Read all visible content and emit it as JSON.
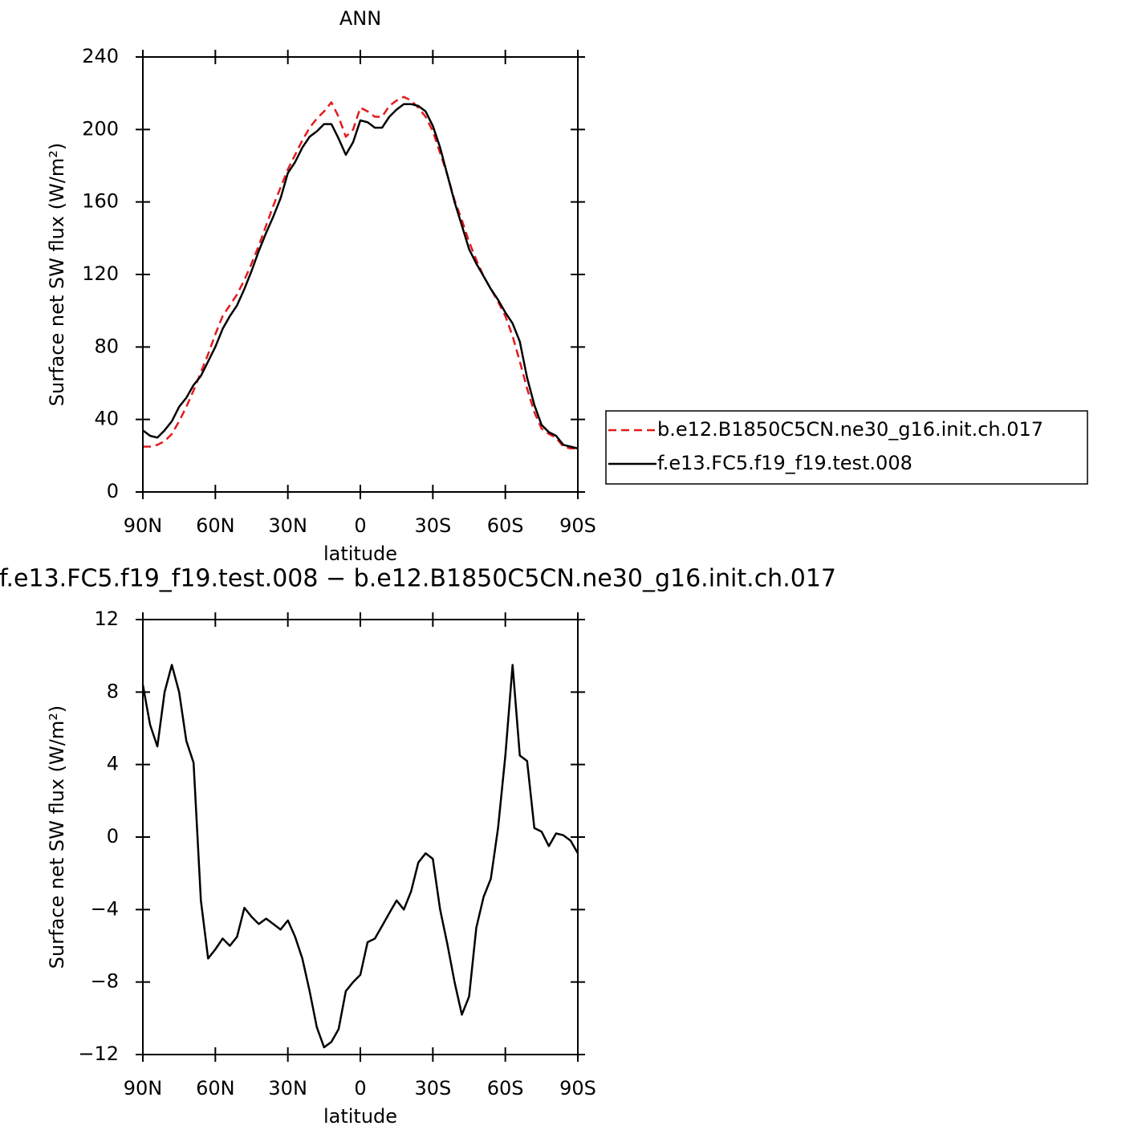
{
  "chart_data": [
    {
      "type": "line",
      "title": "ANN",
      "xlabel": "latitude",
      "ylabel": "Surface net SW flux (W/m²)",
      "x": [
        90,
        87,
        84,
        81,
        78,
        75,
        72,
        69,
        66,
        63,
        60,
        57,
        54,
        51,
        48,
        45,
        42,
        39,
        36,
        33,
        30,
        27,
        24,
        21,
        18,
        15,
        12,
        9,
        6,
        3,
        0,
        -3,
        -6,
        -9,
        -12,
        -15,
        -18,
        -21,
        -24,
        -27,
        -30,
        -33,
        -36,
        -39,
        -42,
        -45,
        -48,
        -51,
        -54,
        -57,
        -60,
        -63,
        -66,
        -69,
        -72,
        -75,
        -78,
        -81,
        -84,
        -87,
        -90
      ],
      "series": [
        {
          "name": "b.e12.B1850C5CN.ne30_g16.init.ch.017",
          "color": "#e41a1c",
          "dash": true,
          "values": [
            25,
            25,
            26,
            28,
            32,
            39,
            47,
            56,
            66,
            76,
            87,
            97,
            103,
            109,
            117,
            126,
            136,
            147,
            158,
            168,
            178,
            186,
            194,
            201,
            206,
            210,
            215,
            207,
            196,
            200,
            212,
            210,
            207,
            207,
            213,
            216,
            218,
            216,
            212,
            207,
            199,
            187,
            175,
            161,
            150,
            138,
            128,
            119,
            112,
            105,
            97,
            86,
            72,
            57,
            44,
            35,
            32,
            30,
            25,
            24,
            24
          ]
        },
        {
          "name": "f.e13.FC5.f19_f19.test.008",
          "color": "#000000",
          "dash": false,
          "values": [
            34,
            31,
            30,
            34,
            39,
            47,
            52,
            59,
            64,
            72,
            80,
            90,
            97,
            103,
            112,
            122,
            133,
            143,
            152,
            162,
            176,
            182,
            190,
            196,
            199,
            203,
            203,
            195,
            186,
            193,
            205,
            204,
            201,
            201,
            207,
            211,
            214,
            214,
            213,
            210,
            202,
            190,
            175,
            160,
            147,
            134,
            126,
            119,
            112,
            106,
            99,
            93,
            83,
            63,
            48,
            37,
            33,
            31,
            26,
            25,
            24
          ]
        }
      ],
      "xlim": [
        90,
        -90
      ],
      "xticks": [
        {
          "value": 90,
          "label": "90N"
        },
        {
          "value": 60,
          "label": "60N"
        },
        {
          "value": 30,
          "label": "30N"
        },
        0,
        {
          "value": -30,
          "label": "30S"
        },
        {
          "value": -60,
          "label": "60S"
        },
        {
          "value": -90,
          "label": "90S"
        }
      ],
      "ylim": [
        0,
        240
      ],
      "yticks": [
        0,
        40,
        80,
        120,
        160,
        200,
        240
      ]
    },
    {
      "type": "line",
      "title": "f.e13.FC5.f19_f19.test.008 − b.e12.B1850C5CN.ne30_g16.init.ch.017",
      "xlabel": "latitude",
      "ylabel": "Surface net SW flux (W/m²)",
      "x": [
        90,
        87,
        84,
        81,
        78,
        75,
        72,
        69,
        66,
        63,
        60,
        57,
        54,
        51,
        48,
        45,
        42,
        39,
        36,
        33,
        30,
        27,
        24,
        21,
        18,
        15,
        12,
        9,
        6,
        3,
        0,
        -3,
        -6,
        -9,
        -12,
        -15,
        -18,
        -21,
        -24,
        -27,
        -30,
        -33,
        -36,
        -39,
        -42,
        -45,
        -48,
        -51,
        -54,
        -57,
        -60,
        -63,
        -66,
        -69,
        -72,
        -75,
        -78,
        -81,
        -84,
        -87,
        -90
      ],
      "series": [
        {
          "color": "#000000",
          "dash": false,
          "values": [
            8.4,
            6.2,
            5.0,
            8.0,
            9.5,
            8.0,
            5.3,
            4.1,
            -3.5,
            -6.7,
            -6.2,
            -5.6,
            -6.0,
            -5.5,
            -3.9,
            -4.4,
            -4.8,
            -4.5,
            -4.8,
            -5.1,
            -4.6,
            -5.5,
            -6.7,
            -8.5,
            -10.5,
            -11.6,
            -11.3,
            -10.6,
            -8.5,
            -8.0,
            -7.6,
            -5.8,
            -5.6,
            -4.9,
            -4.2,
            -3.5,
            -4.0,
            -3.0,
            -1.4,
            -0.9,
            -1.2,
            -4.0,
            -5.9,
            -8.0,
            -9.8,
            -8.8,
            -5.0,
            -3.3,
            -2.3,
            0.5,
            4.5,
            9.5,
            4.5,
            4.2,
            0.5,
            0.3,
            -0.5,
            0.2,
            0.1,
            -0.2,
            -0.9
          ]
        }
      ],
      "xlim": [
        90,
        -90
      ],
      "xticks": [
        {
          "value": 90,
          "label": "90N"
        },
        {
          "value": 60,
          "label": "60N"
        },
        {
          "value": 30,
          "label": "30N"
        },
        0,
        {
          "value": -30,
          "label": "30S"
        },
        {
          "value": -60,
          "label": "60S"
        },
        {
          "value": -90,
          "label": "90S"
        }
      ],
      "ylim": [
        -12,
        12
      ],
      "yticks": [
        {
          "value": -12,
          "label": "−12"
        },
        {
          "value": -8,
          "label": "−8"
        },
        {
          "value": -4,
          "label": "−4"
        },
        0,
        4,
        8,
        12
      ]
    }
  ]
}
